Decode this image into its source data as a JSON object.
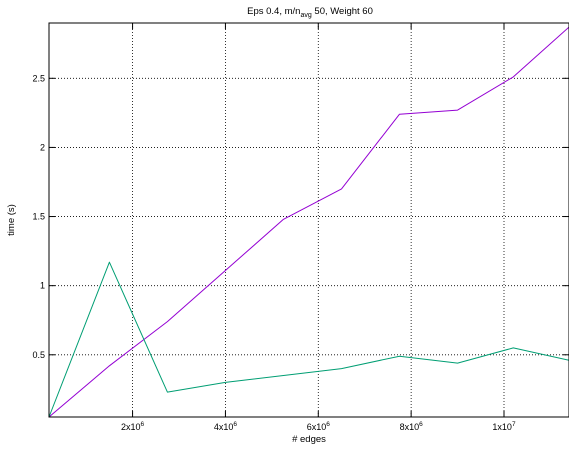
{
  "chart_data": {
    "type": "line",
    "title": {
      "prefix": "Eps 0.4, m/n",
      "sub": "avg",
      "suffix": " 50, Weight 60"
    },
    "xlabel": "# edges",
    "ylabel": "time (s)",
    "xlim": [
      200000,
      11400000
    ],
    "ylim": [
      0.05,
      2.9
    ],
    "grid": true,
    "legend": "none",
    "xticks": [
      {
        "value": 2000000,
        "base": "2x10",
        "exp": "6"
      },
      {
        "value": 4000000,
        "base": "4x10",
        "exp": "6"
      },
      {
        "value": 6000000,
        "base": "6x10",
        "exp": "6"
      },
      {
        "value": 8000000,
        "base": "8x10",
        "exp": "6"
      },
      {
        "value": 10000000,
        "base": "1x10",
        "exp": "7"
      }
    ],
    "yticks": [
      {
        "value": 0.5,
        "label": "0.5"
      },
      {
        "value": 1,
        "label": "1"
      },
      {
        "value": 1.5,
        "label": "1.5"
      },
      {
        "value": 2,
        "label": "2"
      },
      {
        "value": 2.5,
        "label": "2.5"
      }
    ],
    "series": [
      {
        "color": "#9400d3",
        "x": [
          200000,
          1500000,
          2750000,
          4000000,
          5250000,
          6500000,
          7750000,
          9000000,
          10200000,
          11400000
        ],
        "y": [
          0.05,
          0.42,
          0.74,
          1.11,
          1.48,
          1.7,
          2.24,
          2.27,
          2.51,
          2.87
        ]
      },
      {
        "color": "#009e73",
        "x": [
          200000,
          1500000,
          2750000,
          4000000,
          5250000,
          6500000,
          7750000,
          9000000,
          10200000,
          11400000
        ],
        "y": [
          0.05,
          1.17,
          0.23,
          0.3,
          0.35,
          0.4,
          0.49,
          0.44,
          0.55,
          0.46
        ]
      }
    ]
  }
}
